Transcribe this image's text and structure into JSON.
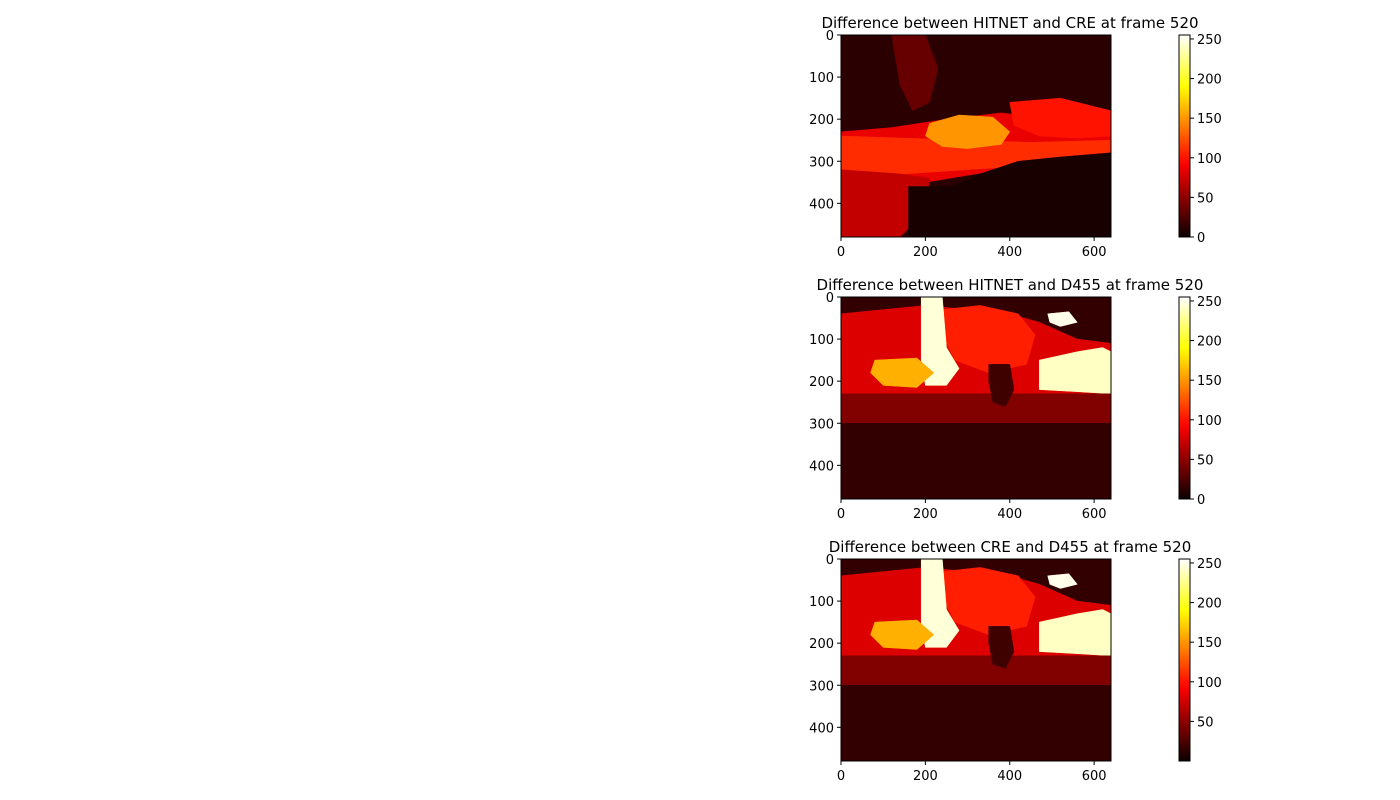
{
  "figure": {
    "background": "#ffffff",
    "colormap": "hot"
  },
  "chart_data": [
    {
      "type": "heatmap",
      "title": "Difference between HITNET and CRE at frame 520",
      "xlabel": "",
      "ylabel": "",
      "xlim": [
        0,
        640
      ],
      "ylim": [
        480,
        0
      ],
      "xticks": [
        0,
        200,
        400,
        600
      ],
      "yticks": [
        0,
        100,
        200,
        300,
        400
      ],
      "colorbar": {
        "range": [
          0,
          255
        ],
        "ticks": [
          0,
          50,
          100,
          150,
          200,
          250
        ]
      },
      "regions": [
        {
          "polygon": [
            [
              0,
              0
            ],
            [
              640,
              0
            ],
            [
              640,
              480
            ],
            [
              0,
              480
            ]
          ],
          "value": 12
        },
        {
          "polygon": [
            [
              0,
              230
            ],
            [
              120,
              220
            ],
            [
              250,
              200
            ],
            [
              380,
              185
            ],
            [
              470,
              195
            ],
            [
              640,
              215
            ],
            [
              640,
              290
            ],
            [
              520,
              305
            ],
            [
              420,
              315
            ],
            [
              320,
              330
            ],
            [
              200,
              350
            ],
            [
              80,
              390
            ],
            [
              0,
              400
            ]
          ],
          "value": 85
        },
        {
          "polygon": [
            [
              0,
              240
            ],
            [
              150,
              245
            ],
            [
              300,
              250
            ],
            [
              450,
              255
            ],
            [
              640,
              250
            ],
            [
              640,
              300
            ],
            [
              450,
              310
            ],
            [
              300,
              320
            ],
            [
              150,
              330
            ],
            [
              0,
              340
            ]
          ],
          "value": 110
        },
        {
          "polygon": [
            [
              210,
              210
            ],
            [
              280,
              190
            ],
            [
              360,
              195
            ],
            [
              400,
              230
            ],
            [
              380,
              260
            ],
            [
              300,
              270
            ],
            [
              240,
              265
            ],
            [
              200,
              240
            ]
          ],
          "value": 150
        },
        {
          "polygon": [
            [
              400,
              160
            ],
            [
              520,
              150
            ],
            [
              640,
              180
            ],
            [
              640,
              240
            ],
            [
              560,
              245
            ],
            [
              470,
              240
            ],
            [
              410,
              215
            ]
          ],
          "value": 100
        },
        {
          "polygon": [
            [
              0,
              320
            ],
            [
              140,
              330
            ],
            [
              210,
              340
            ],
            [
              200,
              420
            ],
            [
              140,
              480
            ],
            [
              0,
              480
            ]
          ],
          "value": 70
        },
        {
          "polygon": [
            [
              120,
              0
            ],
            [
              200,
              0
            ],
            [
              230,
              80
            ],
            [
              210,
              160
            ],
            [
              170,
              180
            ],
            [
              140,
              120
            ]
          ],
          "value": 35
        },
        {
          "polygon": [
            [
              160,
              360
            ],
            [
              260,
              360
            ],
            [
              330,
              330
            ],
            [
              420,
              300
            ],
            [
              520,
              290
            ],
            [
              640,
              280
            ],
            [
              640,
              480
            ],
            [
              160,
              480
            ]
          ],
          "value": 5
        }
      ]
    },
    {
      "type": "heatmap",
      "title": "Difference between HITNET and D455 at frame 520",
      "xlabel": "",
      "ylabel": "",
      "xlim": [
        0,
        640
      ],
      "ylim": [
        480,
        0
      ],
      "xticks": [
        0,
        200,
        400,
        600
      ],
      "yticks": [
        0,
        100,
        200,
        300,
        400
      ],
      "colorbar": {
        "range": [
          0,
          255
        ],
        "ticks": [
          0,
          50,
          100,
          150,
          200,
          250
        ]
      },
      "regions": [
        {
          "polygon": [
            [
              0,
              0
            ],
            [
              640,
              0
            ],
            [
              640,
              480
            ],
            [
              0,
              480
            ]
          ],
          "value": 15
        },
        {
          "polygon": [
            [
              0,
              40
            ],
            [
              200,
              20
            ],
            [
              300,
              30
            ],
            [
              400,
              40
            ],
            [
              470,
              60
            ],
            [
              560,
              100
            ],
            [
              640,
              110
            ],
            [
              640,
              230
            ],
            [
              500,
              240
            ],
            [
              300,
              240
            ],
            [
              150,
              235
            ],
            [
              0,
              240
            ]
          ],
          "value": 80
        },
        {
          "polygon": [
            [
              240,
              30
            ],
            [
              330,
              20
            ],
            [
              420,
              40
            ],
            [
              460,
              90
            ],
            [
              440,
              160
            ],
            [
              350,
              180
            ],
            [
              270,
              150
            ],
            [
              240,
              90
            ]
          ],
          "value": 105
        },
        {
          "polygon": [
            [
              190,
              0
            ],
            [
              240,
              0
            ],
            [
              250,
              120
            ],
            [
              280,
              170
            ],
            [
              250,
              210
            ],
            [
              200,
              210
            ],
            [
              190,
              150
            ]
          ],
          "value": 245
        },
        {
          "polygon": [
            [
              80,
              150
            ],
            [
              180,
              145
            ],
            [
              220,
              180
            ],
            [
              180,
              215
            ],
            [
              100,
              210
            ],
            [
              70,
              180
            ]
          ],
          "value": 160
        },
        {
          "polygon": [
            [
              470,
              150
            ],
            [
              560,
              130
            ],
            [
              620,
              120
            ],
            [
              640,
              130
            ],
            [
              640,
              230
            ],
            [
              560,
              225
            ],
            [
              470,
              220
            ]
          ],
          "value": 240
        },
        {
          "polygon": [
            [
              490,
              40
            ],
            [
              540,
              35
            ],
            [
              560,
              60
            ],
            [
              520,
              70
            ],
            [
              495,
              60
            ]
          ],
          "value": 250
        },
        {
          "polygon": [
            [
              0,
              230
            ],
            [
              640,
              230
            ],
            [
              640,
              300
            ],
            [
              0,
              300
            ]
          ],
          "value": 45
        },
        {
          "polygon": [
            [
              350,
              160
            ],
            [
              400,
              160
            ],
            [
              410,
              220
            ],
            [
              390,
              260
            ],
            [
              360,
              250
            ],
            [
              350,
              200
            ]
          ],
          "value": 20
        },
        {
          "polygon": [
            [
              0,
              300
            ],
            [
              640,
              300
            ],
            [
              640,
              480
            ],
            [
              0,
              480
            ]
          ],
          "value": 15
        }
      ]
    },
    {
      "type": "heatmap",
      "title": "Difference between CRE and D455 at frame 520",
      "xlabel": "",
      "ylabel": "",
      "xlim": [
        0,
        640
      ],
      "ylim": [
        480,
        0
      ],
      "xticks": [
        0,
        200,
        400,
        600
      ],
      "yticks": [
        0,
        100,
        200,
        300,
        400
      ],
      "colorbar": {
        "range": [
          0,
          255
        ],
        "ticks": [
          50,
          100,
          150,
          200,
          250
        ]
      },
      "regions": [
        {
          "polygon": [
            [
              0,
              0
            ],
            [
              640,
              0
            ],
            [
              640,
              480
            ],
            [
              0,
              480
            ]
          ],
          "value": 15
        },
        {
          "polygon": [
            [
              0,
              40
            ],
            [
              200,
              20
            ],
            [
              300,
              30
            ],
            [
              400,
              40
            ],
            [
              470,
              60
            ],
            [
              560,
              100
            ],
            [
              640,
              110
            ],
            [
              640,
              230
            ],
            [
              500,
              240
            ],
            [
              300,
              240
            ],
            [
              150,
              235
            ],
            [
              0,
              240
            ]
          ],
          "value": 80
        },
        {
          "polygon": [
            [
              240,
              30
            ],
            [
              330,
              20
            ],
            [
              420,
              40
            ],
            [
              460,
              90
            ],
            [
              440,
              160
            ],
            [
              350,
              180
            ],
            [
              270,
              150
            ],
            [
              240,
              90
            ]
          ],
          "value": 105
        },
        {
          "polygon": [
            [
              190,
              0
            ],
            [
              240,
              0
            ],
            [
              250,
              120
            ],
            [
              280,
              170
            ],
            [
              250,
              210
            ],
            [
              200,
              210
            ],
            [
              190,
              150
            ]
          ],
          "value": 245
        },
        {
          "polygon": [
            [
              80,
              150
            ],
            [
              180,
              145
            ],
            [
              220,
              180
            ],
            [
              180,
              215
            ],
            [
              100,
              210
            ],
            [
              70,
              180
            ]
          ],
          "value": 160
        },
        {
          "polygon": [
            [
              470,
              150
            ],
            [
              560,
              130
            ],
            [
              620,
              120
            ],
            [
              640,
              130
            ],
            [
              640,
              230
            ],
            [
              560,
              225
            ],
            [
              470,
              220
            ]
          ],
          "value": 240
        },
        {
          "polygon": [
            [
              490,
              40
            ],
            [
              540,
              35
            ],
            [
              560,
              60
            ],
            [
              520,
              70
            ],
            [
              495,
              60
            ]
          ],
          "value": 250
        },
        {
          "polygon": [
            [
              0,
              230
            ],
            [
              640,
              230
            ],
            [
              640,
              300
            ],
            [
              0,
              300
            ]
          ],
          "value": 45
        },
        {
          "polygon": [
            [
              350,
              160
            ],
            [
              400,
              160
            ],
            [
              410,
              220
            ],
            [
              390,
              260
            ],
            [
              360,
              250
            ],
            [
              350,
              200
            ]
          ],
          "value": 20
        },
        {
          "polygon": [
            [
              0,
              300
            ],
            [
              640,
              300
            ],
            [
              640,
              480
            ],
            [
              0,
              480
            ]
          ],
          "value": 15
        }
      ]
    }
  ]
}
